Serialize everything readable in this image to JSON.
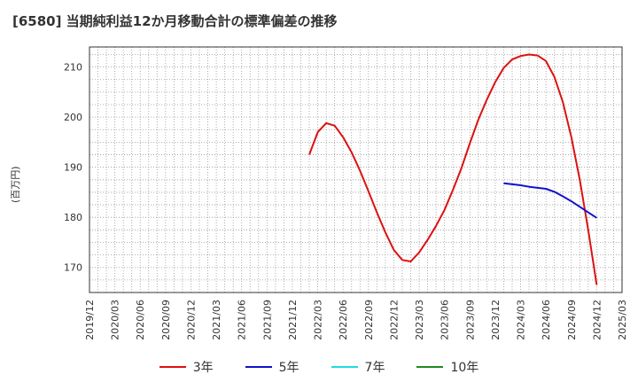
{
  "title": "[6580]  当期純利益12か月移動合計の標準偏差の推移",
  "chart_data": {
    "type": "line",
    "title": "[6580]  当期純利益12か月移動合計の標準偏差の推移",
    "ylabel": "(百万円)",
    "xlabel": "",
    "ylim": [
      165,
      214
    ],
    "yticks": [
      170,
      180,
      190,
      200,
      210
    ],
    "grid": true,
    "legend_position": "bottom",
    "x_ticks": [
      "2019/12",
      "2020/03",
      "2020/06",
      "2020/09",
      "2020/12",
      "2021/03",
      "2021/06",
      "2021/09",
      "2021/12",
      "2022/03",
      "2022/06",
      "2022/09",
      "2022/12",
      "2023/03",
      "2023/06",
      "2023/09",
      "2023/12",
      "2024/03",
      "2024/06",
      "2024/09",
      "2024/12",
      "2025/03"
    ],
    "x_start": "2019/12",
    "x_end": "2025/03",
    "series": [
      {
        "name": "3年",
        "color": "#dd1111",
        "points": [
          [
            "2022/02",
            192.5
          ],
          [
            "2022/03",
            197.0
          ],
          [
            "2022/04",
            198.8
          ],
          [
            "2022/05",
            198.3
          ],
          [
            "2022/06",
            196.0
          ],
          [
            "2022/07",
            193.0
          ],
          [
            "2022/08",
            189.3
          ],
          [
            "2022/09",
            185.2
          ],
          [
            "2022/10",
            181.0
          ],
          [
            "2022/11",
            177.0
          ],
          [
            "2022/12",
            173.5
          ],
          [
            "2023/01",
            171.5
          ],
          [
            "2023/02",
            171.2
          ],
          [
            "2023/03",
            173.0
          ],
          [
            "2023/04",
            175.5
          ],
          [
            "2023/05",
            178.3
          ],
          [
            "2023/06",
            181.5
          ],
          [
            "2023/07",
            185.5
          ],
          [
            "2023/08",
            189.8
          ],
          [
            "2023/09",
            194.8
          ],
          [
            "2023/10",
            199.5
          ],
          [
            "2023/11",
            203.5
          ],
          [
            "2023/12",
            207.0
          ],
          [
            "2024/01",
            209.8
          ],
          [
            "2024/02",
            211.5
          ],
          [
            "2024/03",
            212.2
          ],
          [
            "2024/04",
            212.5
          ],
          [
            "2024/05",
            212.3
          ],
          [
            "2024/06",
            211.2
          ],
          [
            "2024/07",
            208.0
          ],
          [
            "2024/08",
            203.0
          ],
          [
            "2024/09",
            196.0
          ],
          [
            "2024/10",
            187.5
          ],
          [
            "2024/11",
            177.5
          ],
          [
            "2024/12",
            166.5
          ]
        ]
      },
      {
        "name": "5年",
        "color": "#1111cc",
        "points": [
          [
            "2024/01",
            186.8
          ],
          [
            "2024/02",
            186.6
          ],
          [
            "2024/03",
            186.4
          ],
          [
            "2024/04",
            186.1
          ],
          [
            "2024/05",
            185.9
          ],
          [
            "2024/06",
            185.7
          ],
          [
            "2024/07",
            185.1
          ],
          [
            "2024/08",
            184.2
          ],
          [
            "2024/09",
            183.2
          ],
          [
            "2024/10",
            182.1
          ],
          [
            "2024/11",
            181.0
          ],
          [
            "2024/12",
            179.9
          ]
        ]
      },
      {
        "name": "7年",
        "color": "#22dddd",
        "points": []
      },
      {
        "name": "10年",
        "color": "#228822",
        "points": []
      }
    ]
  }
}
